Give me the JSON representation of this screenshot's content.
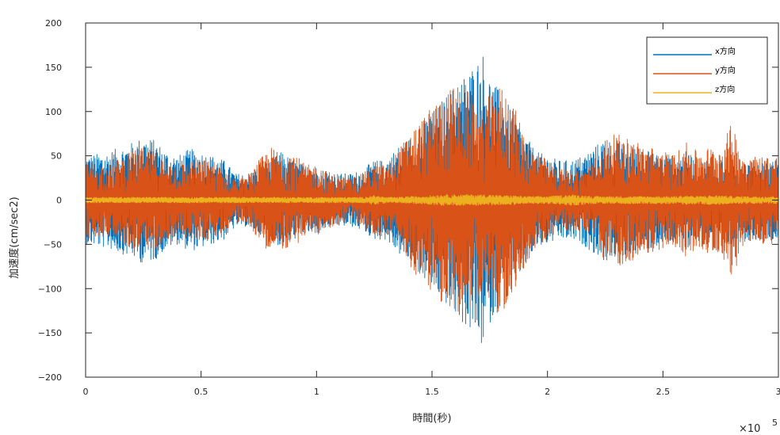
{
  "chart_data": {
    "type": "line",
    "xlabel": "時間(秒)",
    "ylabel": "加速度(cm/sec2)",
    "x_multiplier_base": "×10",
    "x_multiplier_exp": "5",
    "xlim": [
      0,
      300000
    ],
    "ylim": [
      -200,
      200
    ],
    "x_tick_values": [
      0,
      0.5,
      1,
      1.5,
      2,
      2.5,
      3
    ],
    "x_tick_labels": [
      "0",
      "0.5",
      "1",
      "1.5",
      "2",
      "2.5",
      "3"
    ],
    "y_tick_values": [
      200,
      150,
      100,
      50,
      0,
      -50,
      -100,
      -150,
      -200
    ],
    "y_tick_labels": [
      "200",
      "150",
      "100",
      "50",
      "0",
      "−50",
      "−100",
      "−150",
      "−200"
    ],
    "grid": false,
    "legend_position": "top-right",
    "envelope_x": [
      0,
      10000,
      20000,
      25000,
      30000,
      35000,
      40000,
      45000,
      50000,
      55000,
      60000,
      65000,
      70000,
      75000,
      80000,
      85000,
      90000,
      95000,
      100000,
      105000,
      110000,
      115000,
      120000,
      125000,
      130000,
      135000,
      140000,
      145000,
      150000,
      155000,
      160000,
      165000,
      170000,
      172000,
      175000,
      180000,
      185000,
      190000,
      195000,
      200000,
      205000,
      210000,
      215000,
      220000,
      225000,
      230000,
      235000,
      240000,
      245000,
      250000,
      255000,
      260000,
      265000,
      270000,
      275000,
      280000,
      285000,
      290000,
      295000,
      300000
    ],
    "series": [
      {
        "name": "x方向",
        "color": "#0072BD",
        "amplitude": [
          50,
          55,
          65,
          72,
          68,
          55,
          50,
          58,
          55,
          50,
          45,
          30,
          30,
          38,
          45,
          55,
          45,
          38,
          38,
          32,
          30,
          30,
          35,
          45,
          45,
          60,
          70,
          85,
          100,
          115,
          130,
          145,
          160,
          168,
          140,
          120,
          100,
          75,
          55,
          50,
          45,
          45,
          50,
          60,
          70,
          65,
          62,
          60,
          55,
          50,
          48,
          55,
          45,
          45,
          48,
          52,
          45,
          45,
          45,
          45
        ]
      },
      {
        "name": "y方向",
        "color": "#D95319",
        "amplitude": [
          45,
          40,
          55,
          60,
          55,
          45,
          40,
          45,
          45,
          45,
          35,
          25,
          25,
          45,
          60,
          55,
          55,
          40,
          40,
          32,
          28,
          25,
          30,
          40,
          40,
          55,
          75,
          90,
          105,
          120,
          130,
          125,
          110,
          100,
          120,
          130,
          110,
          75,
          55,
          45,
          35,
          35,
          35,
          45,
          70,
          75,
          70,
          65,
          60,
          55,
          52,
          65,
          55,
          60,
          60,
          88,
          50,
          50,
          50,
          50
        ]
      },
      {
        "name": "z方向",
        "color": "#EDB120",
        "amplitude": [
          3,
          3,
          3,
          3,
          3,
          3,
          3,
          3,
          3,
          3,
          3,
          3,
          3,
          3,
          3,
          3,
          3,
          3,
          3,
          3,
          3,
          3,
          3,
          5,
          3,
          3,
          4,
          4,
          5,
          6,
          6,
          6,
          6,
          6,
          6,
          5,
          5,
          4,
          4,
          4,
          5,
          6,
          5,
          4,
          4,
          4,
          4,
          4,
          4,
          4,
          4,
          5,
          4,
          5,
          5,
          4,
          4,
          4,
          4,
          4
        ]
      }
    ]
  }
}
